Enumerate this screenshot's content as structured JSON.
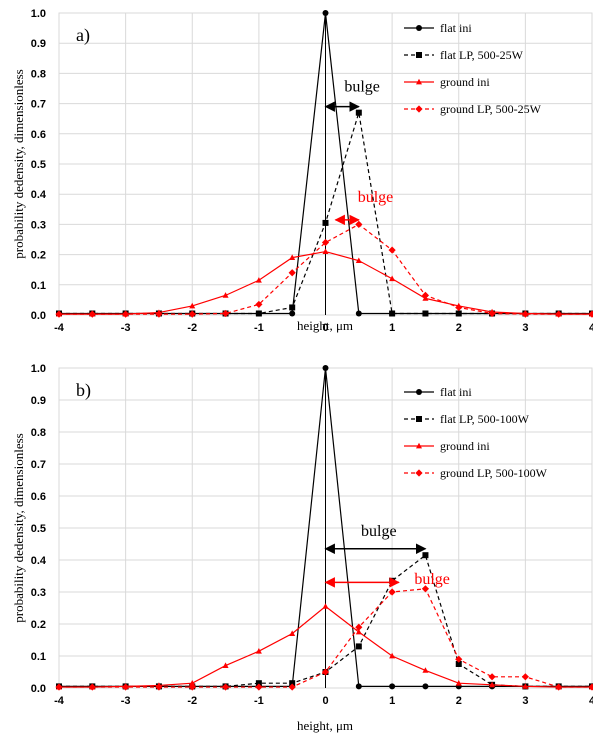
{
  "chart_data": [
    {
      "type": "line",
      "panel_label": "a)",
      "xlabel": "height, μm",
      "ylabel": "probability dedensity, dimensionless",
      "xlim": [
        -4,
        4
      ],
      "ylim": [
        0,
        1
      ],
      "xticks": [
        "-4",
        "-3",
        "-2",
        "-1",
        "0",
        "1",
        "2",
        "3",
        "4"
      ],
      "yticks": [
        "0.0",
        "0.1",
        "0.2",
        "0.3",
        "0.4",
        "0.5",
        "0.6",
        "0.7",
        "0.8",
        "0.9",
        "1.0"
      ],
      "grid": true,
      "legend_position": "top-right",
      "series": [
        {
          "name": "flat ini",
          "color": "#000000",
          "dash": false,
          "marker": "circle",
          "x": [
            -4,
            -3.5,
            -3,
            -2.5,
            -2,
            -1.5,
            -1,
            -0.5,
            0,
            0.5,
            1,
            1.5,
            2,
            2.5,
            3,
            3.5,
            4
          ],
          "y": [
            0.005,
            0.005,
            0.005,
            0.005,
            0.005,
            0.005,
            0.005,
            0.005,
            1.0,
            0.005,
            0.005,
            0.005,
            0.005,
            0.005,
            0.005,
            0.005,
            0.005
          ]
        },
        {
          "name": "flat LP, 500-25W",
          "color": "#000000",
          "dash": true,
          "marker": "square",
          "x": [
            -4,
            -3.5,
            -3,
            -2.5,
            -2,
            -1.5,
            -1,
            -0.5,
            0,
            0.5,
            1,
            1.5,
            2,
            2.5,
            3,
            3.5,
            4
          ],
          "y": [
            0.005,
            0.005,
            0.005,
            0.005,
            0.005,
            0.005,
            0.005,
            0.025,
            0.305,
            0.67,
            0.005,
            0.005,
            0.005,
            0.005,
            0.005,
            0.005,
            0.005
          ]
        },
        {
          "name": "ground ini",
          "color": "#ff0000",
          "dash": false,
          "marker": "triangle",
          "x": [
            -4,
            -3.5,
            -3,
            -2.5,
            -2,
            -1.5,
            -1,
            -0.5,
            0,
            0.5,
            1,
            1.5,
            2,
            2.5,
            3,
            3.5,
            4
          ],
          "y": [
            0.003,
            0.003,
            0.003,
            0.008,
            0.03,
            0.065,
            0.115,
            0.19,
            0.21,
            0.18,
            0.12,
            0.055,
            0.03,
            0.01,
            0.005,
            0.003,
            0.003
          ]
        },
        {
          "name": "ground LP, 500-25W",
          "color": "#ff0000",
          "dash": true,
          "marker": "diamond",
          "x": [
            -4,
            -3.5,
            -3,
            -2.5,
            -2,
            -1.5,
            -1,
            -0.5,
            0,
            0.5,
            1,
            1.5,
            2,
            2.5,
            3,
            3.5,
            4
          ],
          "y": [
            0.003,
            0.003,
            0.003,
            0.003,
            0.003,
            0.005,
            0.035,
            0.14,
            0.24,
            0.3,
            0.215,
            0.065,
            0.025,
            0.005,
            0.003,
            0.003,
            0.003
          ]
        }
      ],
      "annotations": [
        {
          "text": "bulge",
          "color": "#000000",
          "text_x": 0.55,
          "text_y": 0.74,
          "arrow_from": [
            0.0,
            0.69
          ],
          "arrow_to": [
            0.5,
            0.69
          ]
        },
        {
          "text": "bulge",
          "color": "#ff0000",
          "text_x": 0.75,
          "text_y": 0.375,
          "arrow_from": [
            0.15,
            0.315
          ],
          "arrow_to": [
            0.5,
            0.315
          ]
        }
      ]
    },
    {
      "type": "line",
      "panel_label": "b)",
      "xlabel": "height, μm",
      "ylabel": "probability dedensity, dimensionless",
      "xlim": [
        -4,
        4
      ],
      "ylim": [
        0,
        1
      ],
      "xticks": [
        "-4",
        "-3",
        "-2",
        "-1",
        "0",
        "1",
        "2",
        "3",
        "4"
      ],
      "yticks": [
        "0.0",
        "0.1",
        "0.2",
        "0.3",
        "0.4",
        "0.5",
        "0.6",
        "0.7",
        "0.8",
        "0.9",
        "1.0"
      ],
      "grid": true,
      "legend_position": "top-right",
      "series": [
        {
          "name": "flat ini",
          "color": "#000000",
          "dash": false,
          "marker": "circle",
          "x": [
            -4,
            -3.5,
            -3,
            -2.5,
            -2,
            -1.5,
            -1,
            -0.5,
            0,
            0.5,
            1,
            1.5,
            2,
            2.5,
            3,
            3.5,
            4
          ],
          "y": [
            0.005,
            0.005,
            0.005,
            0.005,
            0.005,
            0.005,
            0.005,
            0.005,
            1.0,
            0.005,
            0.005,
            0.005,
            0.005,
            0.005,
            0.005,
            0.005,
            0.005
          ]
        },
        {
          "name": "flat LP, 500-100W",
          "color": "#000000",
          "dash": true,
          "marker": "square",
          "x": [
            -4,
            -3.5,
            -3,
            -2.5,
            -2,
            -1.5,
            -1,
            -0.5,
            0,
            0.5,
            1,
            1.5,
            2,
            2.5,
            3,
            3.5,
            4
          ],
          "y": [
            0.005,
            0.005,
            0.005,
            0.005,
            0.005,
            0.005,
            0.015,
            0.015,
            0.05,
            0.13,
            0.335,
            0.415,
            0.075,
            0.01,
            0.005,
            0.005,
            0.005
          ]
        },
        {
          "name": "ground ini",
          "color": "#ff0000",
          "dash": false,
          "marker": "triangle",
          "x": [
            -4,
            -3.5,
            -3,
            -2.5,
            -2,
            -1.5,
            -1,
            -0.5,
            0,
            0.5,
            1,
            1.5,
            2,
            2.5,
            3,
            3.5,
            4
          ],
          "y": [
            0.003,
            0.003,
            0.005,
            0.008,
            0.015,
            0.07,
            0.115,
            0.17,
            0.255,
            0.175,
            0.1,
            0.055,
            0.015,
            0.01,
            0.005,
            0.003,
            0.003
          ]
        },
        {
          "name": "ground LP, 500-100W",
          "color": "#ff0000",
          "dash": true,
          "marker": "diamond",
          "x": [
            -4,
            -3.5,
            -3,
            -2.5,
            -2,
            -1.5,
            -1,
            -0.5,
            0,
            0.5,
            1,
            1.5,
            2,
            2.5,
            3,
            3.5,
            4
          ],
          "y": [
            0.003,
            0.003,
            0.003,
            0.003,
            0.003,
            0.003,
            0.003,
            0.003,
            0.05,
            0.19,
            0.3,
            0.31,
            0.09,
            0.035,
            0.035,
            0.003,
            0.003
          ]
        }
      ],
      "annotations": [
        {
          "text": "bulge",
          "color": "#000000",
          "text_x": 0.8,
          "text_y": 0.475,
          "arrow_from": [
            0.0,
            0.435
          ],
          "arrow_to": [
            1.5,
            0.435
          ]
        },
        {
          "text": "bulge",
          "color": "#ff0000",
          "text_x": 1.6,
          "text_y": 0.325,
          "arrow_from": [
            0.0,
            0.33
          ],
          "arrow_to": [
            1.1,
            0.33
          ]
        }
      ]
    }
  ]
}
